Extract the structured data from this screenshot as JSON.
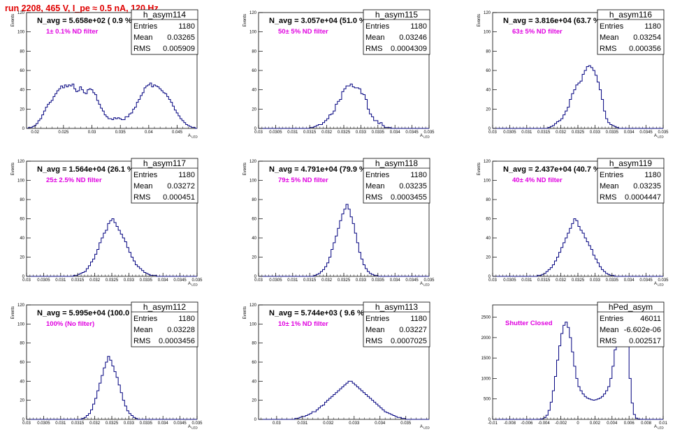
{
  "header": {
    "title": "run 2208,   465 V, I_pe ≈ 0.5 nA, 120 Hz"
  },
  "colors": {
    "title": "#e00000",
    "histogram": "#00007f",
    "filter_label": "#e000e0",
    "axis": "#000000"
  },
  "chart_data": [
    {
      "type": "bar",
      "name": "h_asym114",
      "n_avg": "N_avg = 5.658e+02 ( 0.9 %)",
      "filter": "1± 0.1% ND filter",
      "stats": {
        "Entries": "1180",
        "Mean": "0.03265",
        "RMS": "0.005909"
      },
      "ylabel": "Events",
      "xlabel": "A",
      "xlabel_sub": "LED",
      "xlim": [
        0.0185,
        0.0485
      ],
      "ylim": [
        0,
        120
      ],
      "xticks": [
        "0.02",
        "0.025",
        "0.03",
        "0.035",
        "0.04",
        "0.045"
      ],
      "yticks": [
        "0",
        "20",
        "40",
        "60",
        "80",
        "100",
        "120"
      ],
      "values": [
        0,
        1,
        1,
        2,
        3,
        5,
        8,
        10,
        14,
        18,
        22,
        25,
        27,
        29,
        33,
        36,
        39,
        41,
        44,
        42,
        45,
        43,
        45,
        44,
        46,
        41,
        38,
        39,
        43,
        40,
        37,
        36,
        40,
        41,
        40,
        37,
        35,
        29,
        25,
        21,
        18,
        14,
        12,
        10,
        10,
        9,
        11,
        10,
        11,
        10,
        9,
        9,
        12,
        12,
        15,
        16,
        20,
        22,
        27,
        30,
        34,
        37,
        42,
        44,
        45,
        47,
        43,
        45,
        44,
        43,
        41,
        39,
        37,
        36,
        33,
        30,
        27,
        23,
        19,
        16,
        13,
        10,
        8,
        6,
        4,
        3,
        2,
        1,
        1,
        0
      ]
    },
    {
      "type": "bar",
      "name": "h_asym115",
      "n_avg": "N_avg = 3.057e+04 (51.0 %)",
      "filter": "50± 5% ND filter",
      "stats": {
        "Entries": "1180",
        "Mean": "0.03246",
        "RMS": "0.0004309"
      },
      "ylabel": "Events",
      "xlabel": "A",
      "xlabel_sub": "LED",
      "xlim": [
        0.03,
        0.035
      ],
      "ylim": [
        0,
        120
      ],
      "xticks": [
        "0.03",
        "0.0305",
        "0.031",
        "0.0315",
        "0.032",
        "0.0325",
        "0.033",
        "0.0335",
        "0.034",
        "0.0345",
        "0.035"
      ],
      "yticks": [
        "0",
        "20",
        "40",
        "60",
        "80",
        "100",
        "120"
      ],
      "values": [
        0,
        0,
        0,
        0,
        0,
        0,
        0,
        0,
        0,
        0,
        0,
        0,
        0,
        0,
        0,
        0,
        0,
        0,
        0,
        0,
        0,
        0,
        0,
        0,
        1,
        1,
        2,
        3,
        4,
        4,
        6,
        8,
        10,
        14,
        15,
        18,
        25,
        28,
        30,
        38,
        41,
        44,
        44,
        46,
        43,
        42,
        42,
        41,
        36,
        35,
        30,
        20,
        15,
        12,
        8,
        8,
        5,
        6,
        3,
        1,
        1,
        1,
        0,
        0,
        0,
        0,
        0,
        0,
        0,
        0,
        0,
        0,
        0,
        0,
        0,
        0,
        0,
        0,
        0,
        0
      ]
    },
    {
      "type": "bar",
      "name": "h_asym116",
      "n_avg": "N_avg = 3.816e+04 (63.7 %)",
      "filter": "63± 5% ND filter",
      "stats": {
        "Entries": "1180",
        "Mean": "0.03254",
        "RMS": "0.000356"
      },
      "ylabel": "Events",
      "xlabel": "A",
      "xlabel_sub": "LED",
      "xlim": [
        0.03,
        0.035
      ],
      "ylim": [
        0,
        120
      ],
      "xticks": [
        "0.03",
        "0.0305",
        "0.031",
        "0.0315",
        "0.032",
        "0.0325",
        "0.033",
        "0.0335",
        "0.034",
        "0.0345",
        "0.035"
      ],
      "yticks": [
        "0",
        "20",
        "40",
        "60",
        "80",
        "100",
        "120"
      ],
      "values": [
        0,
        0,
        0,
        0,
        0,
        0,
        0,
        0,
        0,
        0,
        0,
        0,
        0,
        0,
        0,
        0,
        0,
        0,
        0,
        0,
        0,
        0,
        0,
        0,
        0,
        0,
        1,
        2,
        3,
        5,
        7,
        8,
        10,
        14,
        18,
        22,
        30,
        36,
        40,
        45,
        47,
        49,
        56,
        60,
        64,
        65,
        63,
        60,
        55,
        48,
        40,
        30,
        18,
        10,
        6,
        4,
        3,
        2,
        1,
        0,
        0,
        0,
        0,
        0,
        0,
        0,
        0,
        0,
        0,
        0,
        0,
        0,
        0,
        0,
        0,
        0,
        0,
        0,
        0,
        0
      ]
    },
    {
      "type": "bar",
      "name": "h_asym117",
      "n_avg": "N_avg = 1.564e+04 (26.1 %)",
      "filter": "25± 2.5% ND filter",
      "stats": {
        "Entries": "1180",
        "Mean": "0.03272",
        "RMS": "0.000451"
      },
      "ylabel": "Events",
      "xlabel": "A",
      "xlabel_sub": "LED",
      "xlim": [
        0.03,
        0.035
      ],
      "ylim": [
        0,
        120
      ],
      "xticks": [
        "0.03",
        "0.0305",
        "0.031",
        "0.0315",
        "0.032",
        "0.0325",
        "0.033",
        "0.0335",
        "0.034",
        "0.0345",
        "0.035"
      ],
      "yticks": [
        "0",
        "20",
        "40",
        "60",
        "80",
        "100",
        "120"
      ],
      "values": [
        0,
        0,
        0,
        0,
        0,
        0,
        0,
        0,
        0,
        0,
        0,
        0,
        0,
        0,
        0,
        0,
        0,
        0,
        0,
        0,
        0,
        0,
        1,
        1,
        2,
        3,
        4,
        5,
        8,
        11,
        15,
        18,
        23,
        28,
        35,
        40,
        45,
        48,
        55,
        58,
        60,
        56,
        52,
        48,
        44,
        40,
        36,
        30,
        25,
        20,
        16,
        12,
        10,
        8,
        6,
        4,
        3,
        2,
        1,
        1,
        1,
        0,
        0,
        0,
        0,
        0,
        0,
        0,
        0,
        0,
        0,
        0,
        0,
        0,
        0,
        0,
        0,
        0,
        0,
        0
      ]
    },
    {
      "type": "bar",
      "name": "h_asym118",
      "n_avg": "N_avg = 4.791e+04 (79.9 %)",
      "filter": "79± 5% ND filter",
      "stats": {
        "Entries": "1180",
        "Mean": "0.03235",
        "RMS": "0.0003455"
      },
      "ylabel": "Events",
      "xlabel": "A",
      "xlabel_sub": "LED",
      "xlim": [
        0.03,
        0.035
      ],
      "ylim": [
        0,
        120
      ],
      "xticks": [
        "0.03",
        "0.0305",
        "0.031",
        "0.0315",
        "0.032",
        "0.0325",
        "0.033",
        "0.0335",
        "0.034",
        "0.0345",
        "0.035"
      ],
      "yticks": [
        "0",
        "20",
        "40",
        "60",
        "80",
        "100",
        "120"
      ],
      "values": [
        0,
        0,
        0,
        0,
        0,
        0,
        0,
        0,
        0,
        0,
        0,
        0,
        0,
        0,
        0,
        0,
        0,
        0,
        0,
        0,
        0,
        0,
        0,
        0,
        0,
        0,
        1,
        2,
        3,
        5,
        7,
        10,
        14,
        20,
        28,
        35,
        42,
        50,
        58,
        65,
        70,
        75,
        70,
        62,
        55,
        45,
        35,
        25,
        18,
        12,
        8,
        5,
        3,
        2,
        1,
        1,
        0,
        0,
        0,
        0,
        0,
        0,
        0,
        0,
        0,
        0,
        0,
        0,
        0,
        0,
        0,
        0,
        0,
        0,
        0,
        0,
        0,
        0,
        0,
        0
      ]
    },
    {
      "type": "bar",
      "name": "h_asym119",
      "n_avg": "N_avg = 2.437e+04 (40.7 %)",
      "filter": "40± 4% ND filter",
      "stats": {
        "Entries": "1180",
        "Mean": "0.03235",
        "RMS": "0.0004447"
      },
      "ylabel": "Events",
      "xlabel": "A",
      "xlabel_sub": "LED",
      "xlim": [
        0.03,
        0.035
      ],
      "ylim": [
        0,
        120
      ],
      "xticks": [
        "0.03",
        "0.0305",
        "0.031",
        "0.0315",
        "0.032",
        "0.0325",
        "0.033",
        "0.0335",
        "0.034",
        "0.0345",
        "0.035"
      ],
      "yticks": [
        "0",
        "20",
        "40",
        "60",
        "80",
        "100",
        "120"
      ],
      "values": [
        0,
        0,
        0,
        0,
        0,
        0,
        0,
        0,
        0,
        0,
        0,
        0,
        0,
        0,
        0,
        0,
        0,
        0,
        0,
        0,
        0,
        1,
        1,
        2,
        3,
        5,
        7,
        9,
        12,
        16,
        20,
        25,
        30,
        35,
        40,
        45,
        50,
        55,
        60,
        58,
        52,
        48,
        45,
        40,
        36,
        32,
        28,
        22,
        18,
        14,
        10,
        7,
        5,
        3,
        2,
        1,
        1,
        0,
        0,
        0,
        0,
        0,
        0,
        0,
        0,
        0,
        0,
        0,
        0,
        0,
        0,
        0,
        0,
        0,
        0,
        0,
        0,
        0,
        0,
        0
      ]
    },
    {
      "type": "bar",
      "name": "h_asym112",
      "n_avg": "N_avg = 5.995e+04 (100.0 %)",
      "filter": "100% (No filter)",
      "stats": {
        "Entries": "1180",
        "Mean": "0.03228",
        "RMS": "0.0003456"
      },
      "ylabel": "Events",
      "xlabel": "A",
      "xlabel_sub": "LED",
      "xlim": [
        0.03,
        0.035
      ],
      "ylim": [
        0,
        120
      ],
      "xticks": [
        "0.03",
        "0.0305",
        "0.031",
        "0.0315",
        "0.032",
        "0.0325",
        "0.033",
        "0.0335",
        "0.034",
        "0.0345",
        "0.035"
      ],
      "yticks": [
        "0",
        "20",
        "40",
        "60",
        "80",
        "100",
        "120"
      ],
      "values": [
        0,
        0,
        0,
        0,
        0,
        0,
        0,
        0,
        0,
        0,
        0,
        0,
        0,
        0,
        0,
        0,
        0,
        0,
        0,
        0,
        0,
        0,
        0,
        0,
        0,
        0,
        1,
        2,
        4,
        6,
        10,
        16,
        22,
        30,
        38,
        46,
        54,
        60,
        66,
        62,
        56,
        50,
        44,
        36,
        28,
        20,
        14,
        9,
        6,
        4,
        2,
        1,
        0,
        0,
        0,
        0,
        0,
        0,
        0,
        0,
        0,
        0,
        0,
        0,
        0,
        0,
        0,
        0,
        0,
        0,
        0,
        0,
        0,
        0,
        0,
        0,
        0,
        0,
        0,
        0
      ]
    },
    {
      "type": "bar",
      "name": "h_asym113",
      "n_avg": "N_avg = 5.744e+03 ( 9.6 %)",
      "filter": "10± 1% ND filter",
      "stats": {
        "Entries": "1180",
        "Mean": "0.03227",
        "RMS": "0.0007025"
      },
      "ylabel": "Events",
      "xlabel": "A",
      "xlabel_sub": "LED",
      "xlim": [
        0.0293,
        0.0359
      ],
      "ylim": [
        0,
        120
      ],
      "xticks": [
        "0.03",
        "0.031",
        "0.032",
        "0.033",
        "0.034",
        "0.035"
      ],
      "yticks": [
        "0",
        "20",
        "40",
        "60",
        "80",
        "100",
        "120"
      ],
      "values": [
        0,
        0,
        0,
        0,
        0,
        0,
        0,
        0,
        0,
        0,
        0,
        0,
        0,
        0,
        0,
        0,
        0,
        1,
        1,
        2,
        3,
        3,
        4,
        5,
        6,
        8,
        8,
        10,
        12,
        14,
        15,
        18,
        20,
        22,
        24,
        26,
        28,
        30,
        32,
        34,
        36,
        38,
        40,
        40,
        38,
        36,
        34,
        32,
        30,
        28,
        26,
        24,
        22,
        20,
        18,
        16,
        14,
        12,
        10,
        8,
        7,
        6,
        5,
        4,
        3,
        2,
        2,
        1,
        1,
        0,
        0,
        0,
        0,
        0,
        0,
        0,
        0,
        0,
        0,
        0
      ]
    },
    {
      "type": "bar",
      "name": "hPed_asym",
      "n_avg": "",
      "filter": "Shutter Closed",
      "stats": {
        "Entries": "46011",
        "Mean": "-6.602e-06",
        "RMS": "0.002517"
      },
      "ylabel": "",
      "xlabel": "A",
      "xlabel_sub": "LED",
      "xlim": [
        -0.01,
        0.01
      ],
      "ylim": [
        0,
        2800
      ],
      "xticks": [
        "-0.01",
        "-0.008",
        "-0.006",
        "-0.004",
        "-0.002",
        "0",
        "0.002",
        "0.004",
        "0.006",
        "0.008",
        "0.01"
      ],
      "yticks": [
        "0",
        "500",
        "1000",
        "1500",
        "2000",
        "2500"
      ],
      "values": [
        0,
        0,
        0,
        0,
        0,
        0,
        0,
        0,
        0,
        0,
        0,
        0,
        0,
        0,
        0,
        0,
        0,
        0,
        0,
        0,
        0,
        2,
        5,
        15,
        40,
        100,
        220,
        420,
        700,
        1050,
        1450,
        1800,
        2100,
        2300,
        2380,
        2250,
        2000,
        1650,
        1300,
        1000,
        800,
        700,
        620,
        560,
        520,
        500,
        480,
        470,
        480,
        500,
        520,
        560,
        620,
        700,
        800,
        1000,
        1300,
        1700,
        2100,
        2500,
        2800,
        2850,
        2400,
        1800,
        1000,
        400,
        120,
        30,
        8,
        2,
        0,
        0,
        0,
        0,
        0,
        0,
        0,
        0,
        0,
        0
      ]
    }
  ]
}
